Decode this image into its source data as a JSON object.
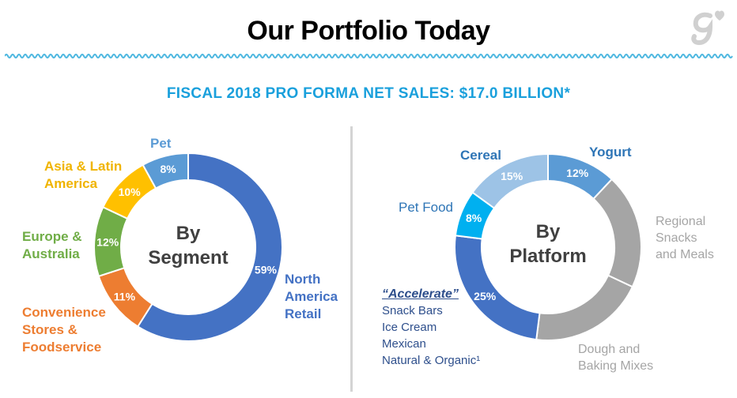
{
  "page": {
    "title": "Our Portfolio Today",
    "subtitle": "FISCAL 2018 PRO FORMA NET SALES:  $17.0 BILLION*"
  },
  "colors": {
    "accent": "#1aa0dc",
    "na_retail": "#4472c4",
    "convenience": "#ed7d31",
    "europe": "#70ad47",
    "asia": "#ffc000",
    "pet": "#5b9bd5",
    "regional": "#a5a5a5",
    "pet_food": "#00b0f0",
    "cereal": "#9dc3e6"
  },
  "chart_data": [
    {
      "type": "pie",
      "variant": "donut",
      "center_label": [
        "By",
        "Segment"
      ],
      "slices": [
        {
          "label": "North America Retail",
          "display": [
            "North",
            "America",
            "Retail"
          ],
          "value": 59,
          "pct_label": "59%",
          "color": "#4472c4"
        },
        {
          "label": "Convenience Stores & Foodservice",
          "display": [
            "Convenience",
            "Stores &",
            "Foodservice"
          ],
          "value": 11,
          "pct_label": "11%",
          "color": "#ed7d31"
        },
        {
          "label": "Europe & Australia",
          "display": [
            "Europe &",
            "Australia"
          ],
          "value": 12,
          "pct_label": "12%",
          "color": "#70ad47"
        },
        {
          "label": "Asia & Latin America",
          "display": [
            "Asia & Latin",
            "America"
          ],
          "value": 10,
          "pct_label": "10%",
          "color": "#ffc000"
        },
        {
          "label": "Pet",
          "display": [
            "Pet"
          ],
          "value": 8,
          "pct_label": "8%",
          "color": "#5b9bd5"
        }
      ]
    },
    {
      "type": "pie",
      "variant": "donut",
      "center_label": [
        "By",
        "Platform"
      ],
      "slices": [
        {
          "label": "Yogurt",
          "value": 12,
          "pct_label": "12%",
          "color": "#5b9bd5"
        },
        {
          "label": "Regional Snacks and Meals",
          "value": 20,
          "pct_label": "",
          "color": "#a5a5a5"
        },
        {
          "label": "Dough and Baking Mixes",
          "value": 20,
          "pct_label": "",
          "color": "#a5a5a5"
        },
        {
          "label": "Accelerate",
          "value": 25,
          "pct_label": "25%",
          "color": "#4472c4"
        },
        {
          "label": "Pet Food",
          "value": 8,
          "pct_label": "8%",
          "color": "#00b0f0"
        },
        {
          "label": "Cereal",
          "value": 15,
          "pct_label": "15%",
          "color": "#9dc3e6"
        }
      ],
      "labels": {
        "yogurt": "Yogurt",
        "cereal": "Cereal",
        "pet_food": "Pet Food",
        "regional": [
          "Regional",
          "Snacks",
          "and Meals"
        ],
        "dough": [
          "Dough and",
          "Baking Mixes"
        ],
        "accelerate_heading": "“Accelerate”",
        "accelerate_items": [
          "Snack Bars",
          "Ice Cream",
          "Mexican",
          "Natural & Organic¹"
        ]
      }
    }
  ]
}
